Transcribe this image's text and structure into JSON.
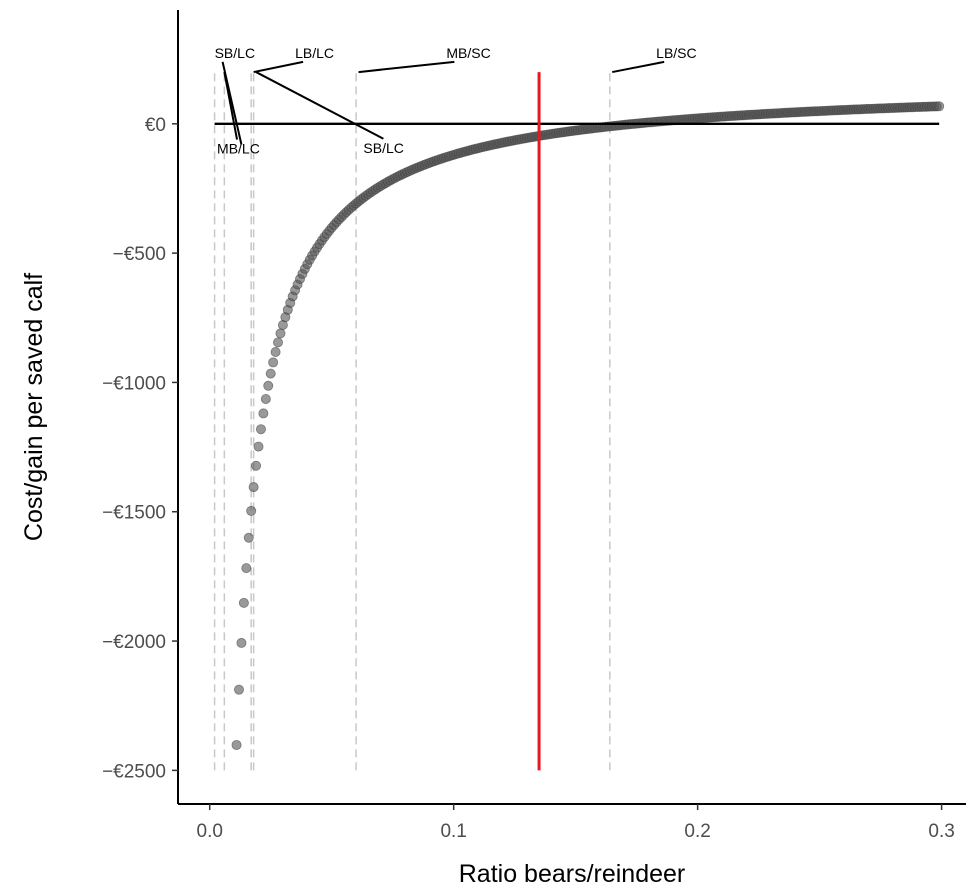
{
  "chart_data": {
    "type": "scatter",
    "xlabel": "Ratio bears/reindeer",
    "ylabel": "Cost/gain per saved calf",
    "xlim": [
      -0.013,
      0.31
    ],
    "ylim": [
      -2630,
      440
    ],
    "x_ticks": [
      {
        "value": 0.0,
        "label": "0.0"
      },
      {
        "value": 0.1,
        "label": "0.1"
      },
      {
        "value": 0.2,
        "label": "0.2"
      },
      {
        "value": 0.3,
        "label": "0.3"
      }
    ],
    "y_ticks": [
      {
        "value": 0,
        "label": "€0"
      },
      {
        "value": -500,
        "label": "−€500"
      },
      {
        "value": -1000,
        "label": "−€1000"
      },
      {
        "value": -1500,
        "label": "−€1500"
      },
      {
        "value": -2000,
        "label": "−€2000"
      },
      {
        "value": -2500,
        "label": "−€2500"
      }
    ],
    "series": [
      {
        "marker_color": "#555555",
        "curve": {
          "A": 162,
          "B": 28.2,
          "x_start": 0.011,
          "x_end": 0.299,
          "x_step": 0.001
        }
      }
    ],
    "hline": {
      "y": 0,
      "color": "#000000"
    },
    "threshold_line": {
      "x": 0.135,
      "y_range": [
        -2500,
        200
      ],
      "color": "#e41a1c"
    },
    "reference_lines": [
      {
        "x": 0.002,
        "label": "SB/LC",
        "label_x": 0.002,
        "label_y": 255,
        "leader_end": {
          "x": 0.013,
          "y": -80
        }
      },
      {
        "x": 0.006,
        "label": "MB/LC",
        "label_x": 0.003,
        "label_y": -115,
        "leader_end": {
          "x": 0.006,
          "y": 200
        }
      },
      {
        "x": 0.017,
        "label": "LB/LC",
        "label_x": 0.035,
        "label_y": 255,
        "leader_end": {
          "x": 0.018,
          "y": 200
        }
      },
      {
        "x": 0.018,
        "label": "SB/LC",
        "label_x": 0.063,
        "label_y": -112,
        "leader_end": {
          "x": 0.019,
          "y": 200
        }
      },
      {
        "x": 0.06,
        "label": "MB/SC",
        "label_x": 0.097,
        "label_y": 255,
        "leader_end": {
          "x": 0.061,
          "y": 200
        }
      },
      {
        "x": 0.164,
        "label": "LB/SC",
        "label_x": 0.183,
        "label_y": 255,
        "leader_end": {
          "x": 0.165,
          "y": 200
        }
      }
    ],
    "reference_line_range": [
      -2500,
      200
    ],
    "grid": false,
    "legend": "none"
  }
}
